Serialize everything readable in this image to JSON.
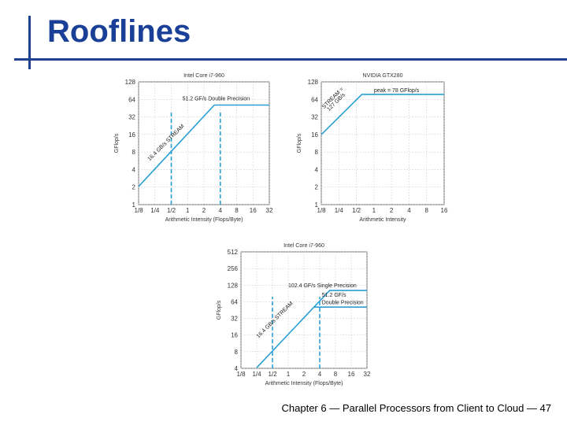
{
  "slide": {
    "title": "Rooflines",
    "footer": "Chapter 6 — Parallel Processors from Client to Cloud — 47"
  },
  "colors": {
    "line": "#2a9fd4",
    "title": "#1a3f96",
    "grid": "#c9c9c9"
  },
  "chart_data": [
    {
      "type": "line",
      "title": "Intel Core i7-960",
      "xlabel": "Arithmetic Intensity (Flops/Byte)",
      "ylabel": "GFlop/s",
      "x_scale": "log2",
      "y_scale": "log2",
      "xlim": [
        0.125,
        32
      ],
      "ylim": [
        1,
        128
      ],
      "x_ticks": [
        0.125,
        0.25,
        0.5,
        1,
        2,
        4,
        8,
        16,
        32
      ],
      "x_tick_labels": [
        "1/8",
        "1/4",
        "1/2",
        "1",
        "2",
        "4",
        "8",
        "16",
        "32"
      ],
      "y_ticks": [
        1,
        2,
        4,
        8,
        16,
        32,
        64,
        128
      ],
      "y_tick_labels": [
        "1",
        "2",
        "4",
        "8",
        "16",
        "32",
        "64",
        "128"
      ],
      "grid": true,
      "series": [
        {
          "x": [
            0.125,
            3.1,
            32
          ],
          "y": [
            2.05,
            51.2,
            51.2
          ]
        }
      ],
      "markers_x": [
        0.5,
        4
      ],
      "annotations": [
        {
          "text": "51.2 GF/s Double Precision",
          "x": 0.8,
          "y": 62
        },
        {
          "text": "16.4 GB/s STREAM",
          "x": 0.2,
          "y": 5.6,
          "rotate": -45
        }
      ]
    },
    {
      "type": "line",
      "title": "NVIDIA GTX280",
      "xlabel": "Arithmetic Intensity",
      "ylabel": "GFlop/s",
      "x_scale": "log2",
      "y_scale": "log2",
      "xlim": [
        0.125,
        16
      ],
      "ylim": [
        1,
        128
      ],
      "x_ticks": [
        0.125,
        0.25,
        0.5,
        1,
        2,
        4,
        8,
        16
      ],
      "x_tick_labels": [
        "1/8",
        "1/4",
        "1/2",
        "1",
        "2",
        "4",
        "8",
        "16"
      ],
      "y_ticks": [
        1,
        2,
        4,
        8,
        16,
        32,
        64,
        128
      ],
      "y_tick_labels": [
        "1",
        "2",
        "4",
        "8",
        "16",
        "32",
        "64",
        "128"
      ],
      "grid": true,
      "series": [
        {
          "x": [
            0.125,
            0.62,
            16
          ],
          "y": [
            15.9,
            78,
            78
          ]
        }
      ],
      "markers_x": [],
      "annotations": [
        {
          "text": "peak = 78 GFlop/s",
          "x": 1,
          "y": 86
        },
        {
          "text": "STREAM =",
          "x": 0.14,
          "y": 44,
          "rotate": -45
        },
        {
          "text": "127 GB/s",
          "x": 0.17,
          "y": 40,
          "rotate": -45
        }
      ]
    },
    {
      "type": "line",
      "title": "Intel Core i7-960",
      "xlabel": "Arithmetic Intensity (Flops/Byte)",
      "ylabel": "GFlop/s",
      "x_scale": "log2",
      "y_scale": "log2",
      "xlim": [
        0.125,
        32
      ],
      "ylim": [
        4,
        512
      ],
      "x_ticks": [
        0.125,
        0.25,
        0.5,
        1,
        2,
        4,
        8,
        16,
        32
      ],
      "x_tick_labels": [
        "1/8",
        "1/4",
        "1/2",
        "1",
        "2",
        "4",
        "8",
        "16",
        "32"
      ],
      "y_ticks": [
        4,
        8,
        16,
        32,
        64,
        128,
        256,
        512
      ],
      "y_tick_labels": [
        "4",
        "8",
        "16",
        "32",
        "64",
        "128",
        "256",
        "512"
      ],
      "grid": true,
      "series": [
        {
          "x": [
            0.25,
            6.2,
            32
          ],
          "y": [
            4.1,
            102.4,
            102.4
          ]
        },
        {
          "x": [
            3.1,
            32
          ],
          "y": [
            51.2,
            51.2
          ]
        }
      ],
      "markers_x": [
        0.5,
        4
      ],
      "annotations": [
        {
          "text": "102.4 GF/s Single Precision",
          "x": 1,
          "y": 118
        },
        {
          "text": "51.2 GF/s",
          "x": 4.4,
          "y": 79
        },
        {
          "text": "Double Precision",
          "x": 4.4,
          "y": 58
        },
        {
          "text": "16.4 GB/s STREAM",
          "x": 0.27,
          "y": 14,
          "rotate": -45
        }
      ]
    }
  ]
}
